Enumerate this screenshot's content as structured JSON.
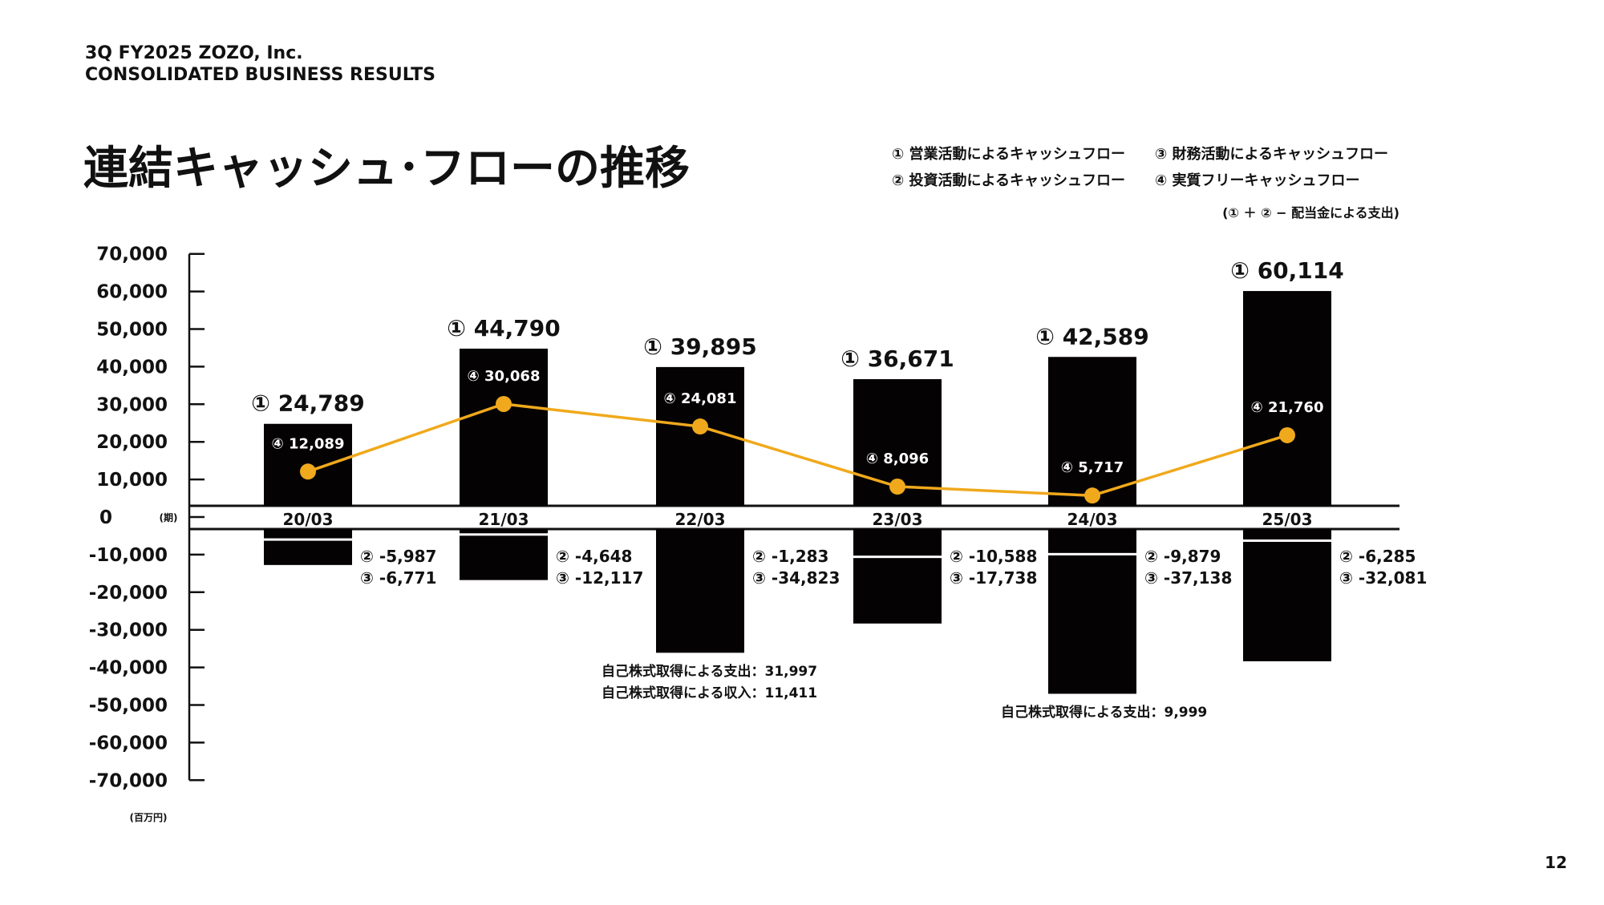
{
  "header": {
    "line1": "3Q FY2025 ZOZO, Inc.",
    "line2": "CONSOLIDATED BUSINESS RESULTS"
  },
  "title": "連結キャッシュ･フローの推移",
  "legend": {
    "items": [
      "① 営業活動によるキャッシュフロー",
      "② 投資活動によるキャッシュフロー",
      "③ 財務活動によるキャッシュフロー",
      "④ 実質フリーキャッシュフロー"
    ],
    "note": "(① ＋ ② − 配当金による支出)"
  },
  "page_number": "12",
  "colors": {
    "bar": "#050203",
    "line": "#f0a91c",
    "text": "#111111"
  },
  "chart_data": {
    "type": "bar",
    "subtype": "bar with stacked negative bars and line overlay",
    "categories": [
      "20/03",
      "21/03",
      "22/03",
      "23/03",
      "24/03",
      "25/03"
    ],
    "xlabel": "(期)",
    "ylabel": "(百万円)",
    "ylim": [
      -70000,
      70000
    ],
    "yticks": [
      70000,
      60000,
      50000,
      40000,
      30000,
      20000,
      10000,
      0,
      -10000,
      -20000,
      -30000,
      -40000,
      -50000,
      -60000,
      -70000
    ],
    "ytick_labels": [
      "70,000",
      "60,000",
      "50,000",
      "40,000",
      "30,000",
      "20,000",
      "10,000",
      "0",
      "-10,000",
      "-20,000",
      "-30,000",
      "-40,000",
      "-50,000",
      "-60,000",
      "-70,000"
    ],
    "grid": false,
    "legend_placement": "top-right",
    "series": [
      {
        "name": "① 営業活動によるキャッシュフロー",
        "marker": "①",
        "type": "bar",
        "values": [
          24789,
          44790,
          39895,
          36671,
          42589,
          60114
        ],
        "labels": [
          "24,789",
          "44,790",
          "39,895",
          "36,671",
          "42,589",
          "60,114"
        ]
      },
      {
        "name": "② 投資活動によるキャッシュフロー",
        "marker": "②",
        "type": "bar-stacked-negative",
        "values": [
          -5987,
          -4648,
          -1283,
          -10588,
          -9879,
          -6285
        ],
        "labels": [
          "-5,987",
          "-4,648",
          "-1,283",
          "-10,588",
          "-9,879",
          "-6,285"
        ]
      },
      {
        "name": "③ 財務活動によるキャッシュフロー",
        "marker": "③",
        "type": "bar-stacked-negative",
        "values": [
          -6771,
          -12117,
          -34823,
          -17738,
          -37138,
          -32081
        ],
        "labels": [
          "-6,771",
          "-12,117",
          "-34,823",
          "-17,738",
          "-37,138",
          "-32,081"
        ]
      },
      {
        "name": "④ 実質フリーキャッシュフロー",
        "marker": "④",
        "type": "line",
        "values": [
          12089,
          30068,
          24081,
          8096,
          5717,
          21760
        ],
        "labels": [
          "12,089",
          "30,068",
          "24,081",
          "8,096",
          "5,717",
          "21,760"
        ]
      }
    ],
    "annotations": [
      {
        "category": "22/03",
        "lines": [
          "自己株式取得による支出：31,997",
          "自己株式取得による収入：11,411"
        ]
      },
      {
        "category": "24/03",
        "lines": [
          "自己株式取得による支出：9,999"
        ]
      }
    ]
  }
}
